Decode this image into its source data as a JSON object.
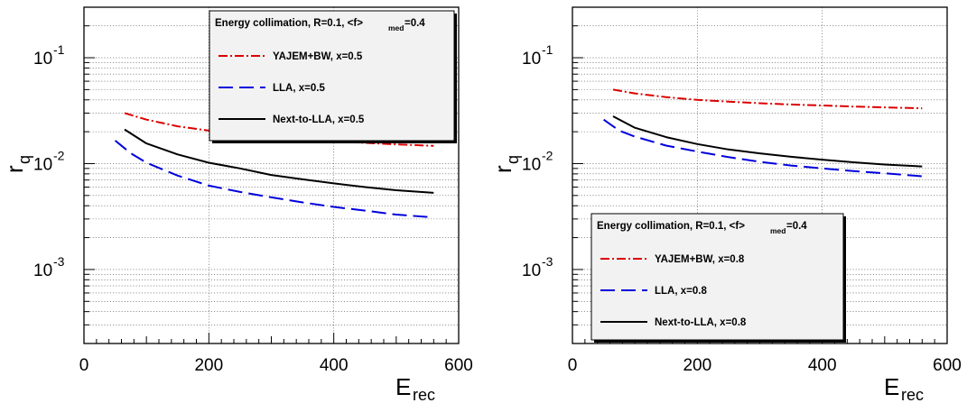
{
  "chart_data": [
    {
      "type": "line",
      "xlabel": "E",
      "xlabel_sub": "rec",
      "ylabel": "r",
      "ylabel_sub": "q",
      "xlim": [
        0,
        600
      ],
      "ylim": [
        0.0002,
        0.3
      ],
      "yscale": "log",
      "grid": true,
      "xticks": [
        0,
        200,
        400,
        600
      ],
      "xtick_labels": [
        "0",
        "200",
        "400",
        "600"
      ],
      "yticks": [
        0.001,
        0.01,
        0.1
      ],
      "ytick_base": "10",
      "ytick_exps": [
        "-3",
        "-2",
        "-1"
      ],
      "legend": {
        "placement": "top-right",
        "title": "Energy collimation, R=0.1, <f>",
        "title_sub": "med",
        "title_tail": "=0.4",
        "entries": [
          "YAJEM+BW, x=0.5",
          "LLA, x=0.5",
          "Next-to-LLA, x=0.5"
        ]
      },
      "series": [
        {
          "name": "YAJEM+BW, x=0.5",
          "color": "#dd0000",
          "style": "dashdot",
          "x": [
            65,
            100,
            150,
            200,
            250,
            300,
            350,
            400,
            450,
            500,
            560
          ],
          "y": [
            0.03,
            0.026,
            0.0225,
            0.0205,
            0.019,
            0.0178,
            0.017,
            0.0163,
            0.0157,
            0.0152,
            0.0147
          ]
        },
        {
          "name": "LLA, x=0.5",
          "color": "#0000dd",
          "style": "dashed",
          "x": [
            50,
            75,
            100,
            150,
            200,
            250,
            300,
            350,
            400,
            450,
            500,
            560
          ],
          "y": [
            0.0165,
            0.0125,
            0.0102,
            0.0077,
            0.0062,
            0.0054,
            0.0048,
            0.0043,
            0.0039,
            0.0036,
            0.0033,
            0.0031
          ]
        },
        {
          "name": "Next-to-LLA, x=0.5",
          "color": "#000000",
          "style": "solid",
          "x": [
            65,
            100,
            150,
            200,
            250,
            300,
            350,
            400,
            450,
            500,
            560
          ],
          "y": [
            0.021,
            0.0155,
            0.0122,
            0.0102,
            0.009,
            0.0078,
            0.0071,
            0.0065,
            0.006,
            0.0056,
            0.0053
          ]
        }
      ]
    },
    {
      "type": "line",
      "xlabel": "E",
      "xlabel_sub": "rec",
      "ylabel": "r",
      "ylabel_sub": "q",
      "xlim": [
        0,
        600
      ],
      "ylim": [
        0.0002,
        0.3
      ],
      "yscale": "log",
      "grid": true,
      "xticks": [
        0,
        200,
        400,
        600
      ],
      "xtick_labels": [
        "0",
        "200",
        "400",
        "600"
      ],
      "yticks": [
        0.001,
        0.01,
        0.1
      ],
      "ytick_base": "10",
      "ytick_exps": [
        "-3",
        "-2",
        "-1"
      ],
      "legend": {
        "placement": "bottom-right",
        "title": "Energy collimation, R=0.1, <f>",
        "title_sub": "med",
        "title_tail": "=0.4",
        "entries": [
          "YAJEM+BW, x=0.8",
          "LLA, x=0.8",
          "Next-to-LLA, x=0.8"
        ]
      },
      "series": [
        {
          "name": "YAJEM+BW, x=0.8",
          "color": "#dd0000",
          "style": "dashdot",
          "x": [
            65,
            100,
            150,
            200,
            250,
            300,
            350,
            400,
            450,
            500,
            560
          ],
          "y": [
            0.05,
            0.046,
            0.0425,
            0.04,
            0.0385,
            0.0372,
            0.0362,
            0.0354,
            0.0346,
            0.034,
            0.0333
          ]
        },
        {
          "name": "LLA, x=0.8",
          "color": "#0000dd",
          "style": "dashed",
          "x": [
            50,
            75,
            100,
            150,
            200,
            250,
            300,
            350,
            400,
            450,
            500,
            560
          ],
          "y": [
            0.026,
            0.0205,
            0.018,
            0.0148,
            0.013,
            0.0115,
            0.0104,
            0.0096,
            0.009,
            0.0085,
            0.0081,
            0.0076
          ]
        },
        {
          "name": "Next-to-LLA, x=0.8",
          "color": "#000000",
          "style": "solid",
          "x": [
            65,
            100,
            150,
            200,
            250,
            300,
            350,
            400,
            450,
            500,
            560
          ],
          "y": [
            0.028,
            0.0218,
            0.0178,
            0.0153,
            0.0136,
            0.0125,
            0.0116,
            0.0109,
            0.0103,
            0.0098,
            0.0094
          ]
        }
      ]
    }
  ]
}
